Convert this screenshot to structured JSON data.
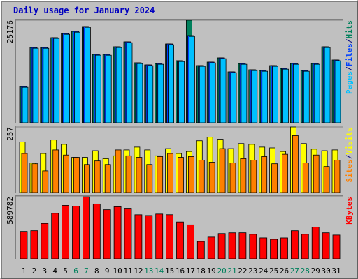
{
  "chart_data": [
    {
      "type": "bar",
      "title": "Daily usage for January 2024",
      "categories": [
        "1",
        "2",
        "3",
        "4",
        "5",
        "6",
        "7",
        "8",
        "9",
        "10",
        "11",
        "12",
        "13",
        "14",
        "15",
        "16",
        "17",
        "18",
        "19",
        "20",
        "21",
        "22",
        "23",
        "24",
        "25",
        "26",
        "27",
        "28",
        "29",
        "30",
        "31"
      ],
      "category_colors": [
        "#000000",
        "#000000",
        "#000000",
        "#000000",
        "#000000",
        "#00805c",
        "#00805c",
        "#000000",
        "#000000",
        "#000000",
        "#000000",
        "#000000",
        "#00805c",
        "#00805c",
        "#000000",
        "#000000",
        "#000000",
        "#000000",
        "#000000",
        "#00805c",
        "#00805c",
        "#000000",
        "#000000",
        "#000000",
        "#000000",
        "#000000",
        "#00805c",
        "#00805c",
        "#000000",
        "#000000",
        "#000000"
      ],
      "ylim": [
        0,
        25176
      ],
      "yticks": [
        25176
      ],
      "legend_separator": "/",
      "series": [
        {
          "name": "Hits",
          "color": "#00805c",
          "values": [
            8906,
            18497,
            18497,
            20895,
            21922,
            22436,
            23635,
            16784,
            16784,
            18668,
            19867,
            14729,
            14215,
            14558,
            19353,
            15243,
            25176,
            14044,
            14900,
            15928,
            12503,
            14558,
            13016,
            12845,
            14044,
            13359,
            14558,
            12845,
            14558,
            18668,
            15414
          ]
        },
        {
          "name": "Files",
          "color": "#0040ff",
          "values": [
            8906,
            18497,
            18497,
            20895,
            21922,
            22436,
            23635,
            16784,
            16784,
            18668,
            19867,
            14729,
            14215,
            14558,
            19353,
            15243,
            21408,
            14044,
            14900,
            15928,
            12503,
            14558,
            13016,
            12845,
            14044,
            13359,
            14558,
            12845,
            14558,
            18668,
            15414
          ]
        },
        {
          "name": "Pages",
          "color": "#00c0ff",
          "values": [
            8710,
            18300,
            18290,
            20700,
            21720,
            22230,
            23430,
            16590,
            16580,
            18470,
            19660,
            14530,
            14020,
            14360,
            19150,
            15040,
            21200,
            13850,
            14700,
            15730,
            12300,
            14360,
            12820,
            12650,
            13850,
            13160,
            14360,
            12650,
            14360,
            18470,
            15220
          ]
        }
      ]
    },
    {
      "type": "bar",
      "ylim": [
        0,
        257
      ],
      "yticks": [
        257
      ],
      "legend_separator": "/",
      "series": [
        {
          "name": "Visits",
          "color": "#ffff00",
          "values": [
            198,
            116,
            153,
            206,
            189,
            138,
            138,
            164,
            133,
            144,
            167,
            178,
            167,
            144,
            172,
            153,
            161,
            203,
            217,
            209,
            172,
            192,
            189,
            178,
            175,
            161,
            257,
            192,
            170,
            164,
            167
          ]
        },
        {
          "name": "Sites",
          "color": "#ff8000",
          "values": [
            153,
            113,
            85,
            167,
            147,
            138,
            110,
            124,
            110,
            167,
            144,
            138,
            110,
            141,
            153,
            138,
            141,
            127,
            119,
            172,
            116,
            133,
            127,
            141,
            113,
            150,
            223,
            116,
            147,
            102,
            127
          ]
        }
      ]
    },
    {
      "type": "bar",
      "ylim": [
        0,
        589782
      ],
      "yticks": [
        589782
      ],
      "series": [
        {
          "name": "KBytes",
          "color": "#ff0000",
          "values": [
            260615,
            267300,
            336000,
            432100,
            507200,
            500300,
            589782,
            521000,
            466300,
            494100,
            480200,
            418500,
            411300,
            425200,
            418900,
            350100,
            322400,
            165200,
            206300,
            240100,
            247000,
            247500,
            233100,
            199200,
            185400,
            199000,
            267100,
            233400,
            302200,
            247300,
            226100
          ]
        }
      ]
    }
  ]
}
